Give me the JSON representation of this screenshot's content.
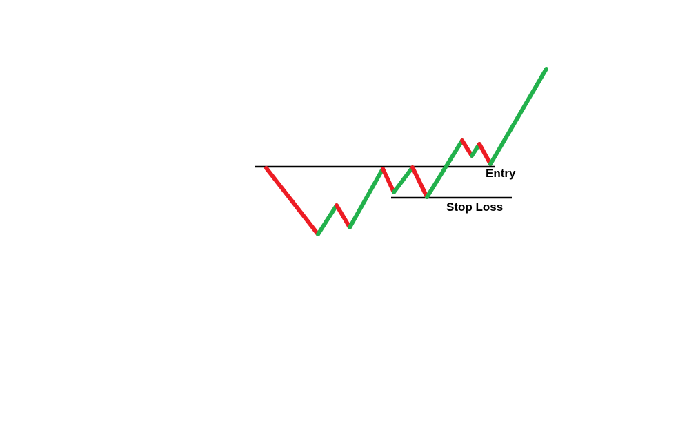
{
  "labels": {
    "entry": "Entry",
    "stop_loss": "Stop Loss"
  },
  "colors": {
    "background": "#ffffff",
    "level_line": "#000000",
    "down_leg": "#ed1c24",
    "up_leg": "#22b14c"
  },
  "price_path": {
    "legs": [
      {
        "direction": "down"
      },
      {
        "direction": "up"
      },
      {
        "direction": "down"
      },
      {
        "direction": "up"
      },
      {
        "direction": "down"
      },
      {
        "direction": "up"
      },
      {
        "direction": "down"
      },
      {
        "direction": "up"
      },
      {
        "direction": "down"
      },
      {
        "direction": "up"
      },
      {
        "direction": "down"
      },
      {
        "direction": "up"
      }
    ]
  }
}
